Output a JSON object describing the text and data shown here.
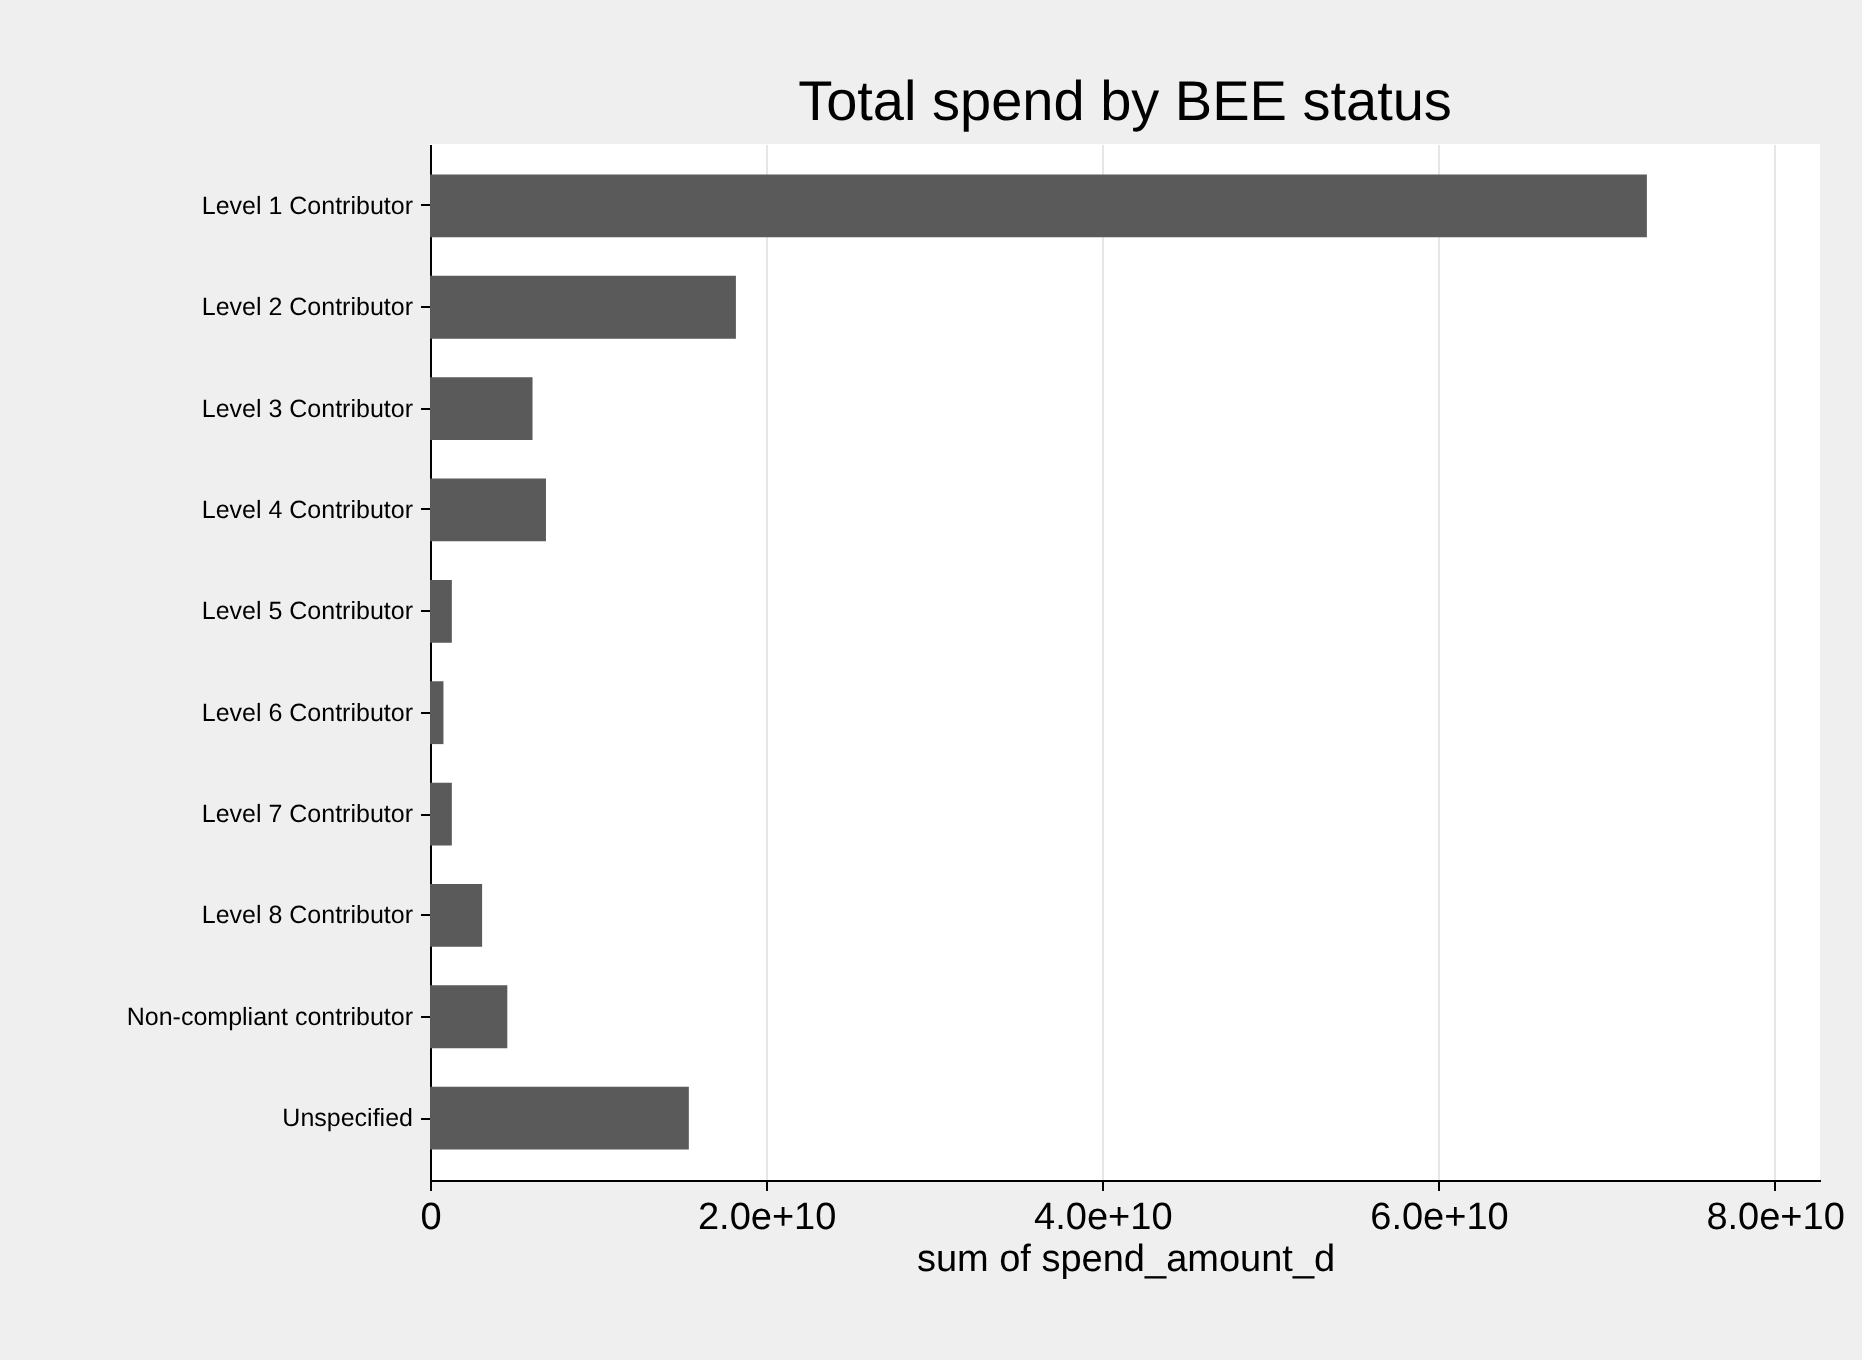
{
  "chart_data": {
    "type": "bar",
    "orientation": "horizontal",
    "title": "Total spend by BEE status",
    "xlabel": "sum of spend_amount_d",
    "categories": [
      "Level 1 Contributor",
      "Level 2 Contributor",
      "Level 3 Contributor",
      "Level 4 Contributor",
      "Level 5 Contributor",
      "Level 6 Contributor",
      "Level 7 Contributor",
      "Level 8 Contributor",
      "Non-compliant contributor",
      "Unspecified"
    ],
    "values": [
      72400000000,
      18200000000,
      6100000000,
      6900000000,
      1300000000,
      800000000,
      1300000000,
      3100000000,
      4600000000,
      15400000000
    ],
    "color": "#5a5a5a",
    "xlim": [
      0,
      82700000000
    ],
    "xticks": [
      0,
      {
        "value": 20000000000,
        "label": "2.0e+10"
      },
      {
        "value": 40000000000,
        "label": "4.0e+10"
      },
      {
        "value": 60000000000,
        "label": "6.0e+10"
      },
      {
        "value": 80000000000,
        "label": "8.0e+10"
      }
    ],
    "grid": "x"
  }
}
